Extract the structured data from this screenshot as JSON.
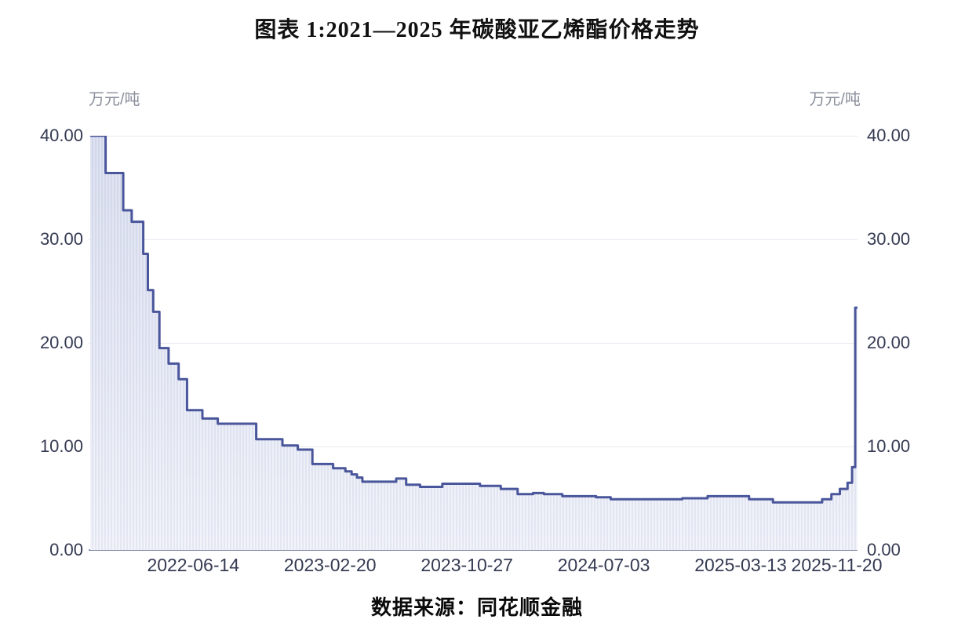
{
  "chart_data": {
    "type": "area",
    "title": "图表 1:2021—2025 年碳酸亚乙烯酯价格走势",
    "source": "数据来源：同花顺金融",
    "unit_left": "万元/吨",
    "unit_right": "万元/吨",
    "ylim": [
      0,
      40
    ],
    "grid": true,
    "legend": "none",
    "yticks": [
      "40.00",
      "30.00",
      "20.00",
      "10.00",
      "0.00"
    ],
    "xticks": [
      "2022-06-14",
      "2023-02-20",
      "2023-10-27",
      "2024-07-03",
      "2025-03-13",
      "2025-11-20"
    ],
    "xtick_pos_pct": [
      13.6,
      31.4,
      49.2,
      67.0,
      84.8,
      97.3
    ],
    "series": [
      {
        "name": "碳酸亚乙烯酯价格(万元/吨)",
        "interpolation": "step-after",
        "points": [
          [
            0.2,
            40.0
          ],
          [
            2.2,
            36.4
          ],
          [
            4.5,
            32.8
          ],
          [
            5.6,
            31.7
          ],
          [
            7.1,
            28.6
          ],
          [
            7.7,
            25.1
          ],
          [
            8.4,
            23.0
          ],
          [
            9.2,
            19.5
          ],
          [
            10.4,
            18.0
          ],
          [
            11.7,
            16.5
          ],
          [
            12.8,
            13.5
          ],
          [
            14.8,
            12.7
          ],
          [
            16.8,
            12.2
          ],
          [
            21.8,
            10.7
          ],
          [
            25.2,
            10.1
          ],
          [
            27.2,
            9.7
          ],
          [
            29.1,
            8.3
          ],
          [
            31.8,
            7.9
          ],
          [
            33.4,
            7.6
          ],
          [
            34.2,
            7.3
          ],
          [
            34.9,
            7.0
          ],
          [
            35.6,
            6.6
          ],
          [
            40.0,
            6.9
          ],
          [
            41.3,
            6.3
          ],
          [
            43.1,
            6.1
          ],
          [
            46.0,
            6.4
          ],
          [
            50.9,
            6.2
          ],
          [
            53.6,
            5.9
          ],
          [
            55.8,
            5.4
          ],
          [
            57.8,
            5.5
          ],
          [
            59.2,
            5.4
          ],
          [
            61.6,
            5.2
          ],
          [
            66.0,
            5.1
          ],
          [
            67.9,
            4.9
          ],
          [
            77.2,
            5.0
          ],
          [
            80.5,
            5.2
          ],
          [
            85.9,
            4.9
          ],
          [
            89.0,
            4.6
          ],
          [
            94.6,
            4.6
          ],
          [
            95.4,
            4.9
          ],
          [
            96.6,
            5.4
          ],
          [
            97.7,
            5.9
          ],
          [
            98.7,
            6.5
          ],
          [
            99.3,
            8.0
          ],
          [
            99.7,
            23.4
          ]
        ]
      }
    ],
    "colors": {
      "line": "#4a569b",
      "fill_top": "#dde1f1",
      "fill_bottom": "#f2f4fa",
      "stripe": "rgba(105,118,168,0.10)",
      "grid": "#e9eaf1",
      "axis": "#8b93ae",
      "tick_label": "#343a52",
      "unit_label": "#8a8f9c"
    }
  }
}
